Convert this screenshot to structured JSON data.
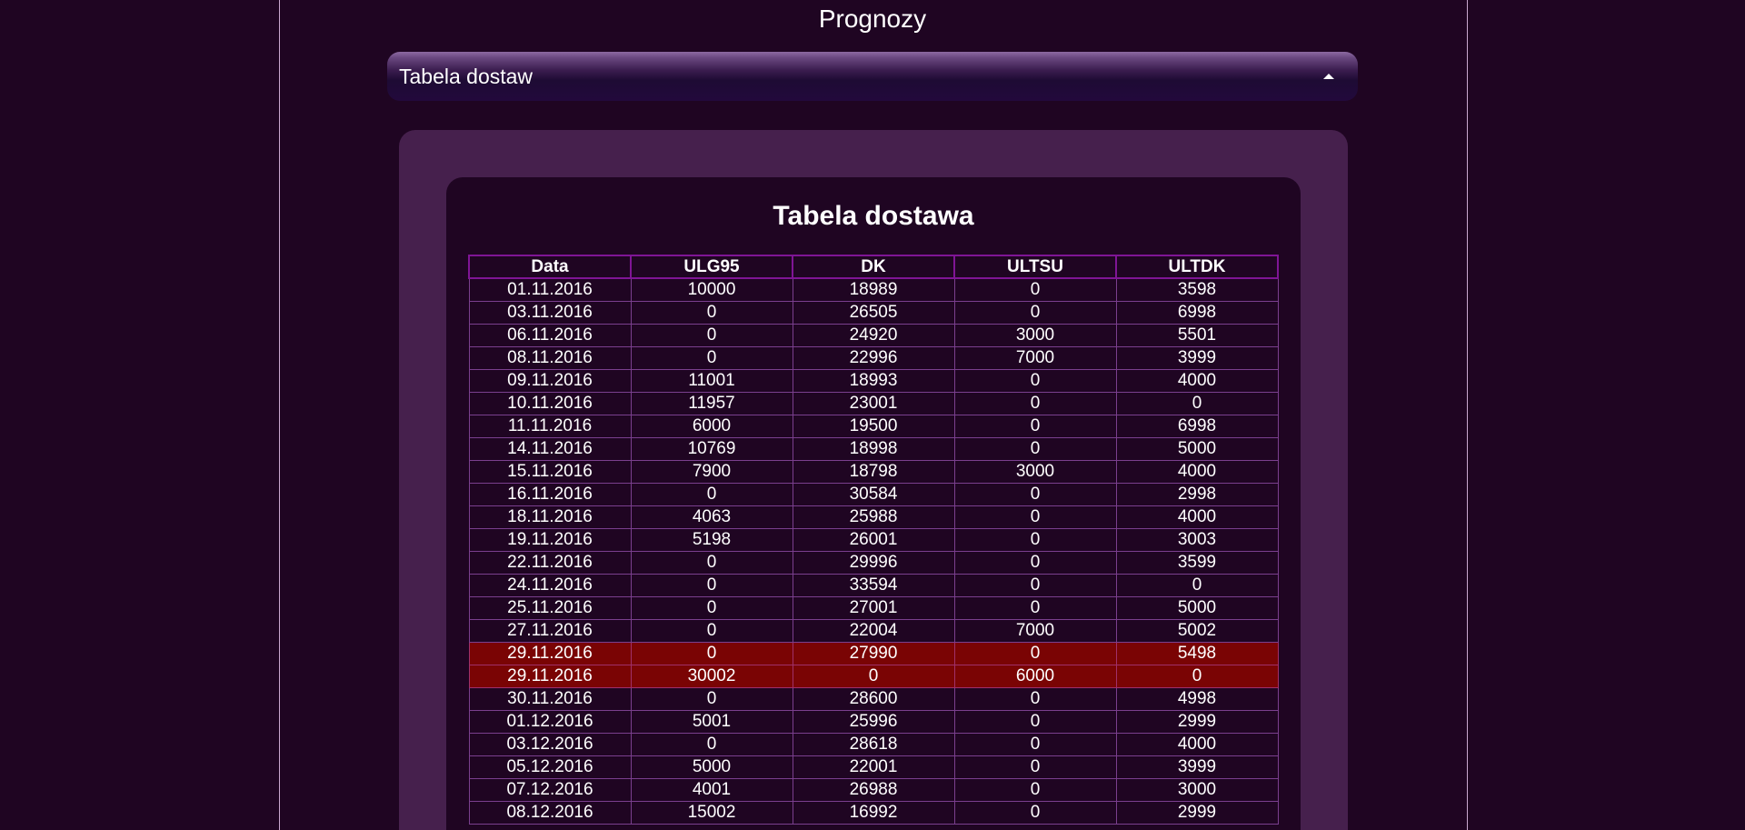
{
  "page": {
    "title": "Prognozy"
  },
  "collapsible": {
    "label": "Tabela dostaw",
    "caret_icon": "caret-up-icon"
  },
  "table": {
    "title": "Tabela dostawa",
    "columns": [
      "Data",
      "ULG95",
      "DK",
      "ULTSU",
      "ULTDK"
    ],
    "highlight_color": "#7a0404",
    "rows": [
      {
        "cells": [
          "01.11.2016",
          "10000",
          "18989",
          "0",
          "3598"
        ],
        "highlight": false
      },
      {
        "cells": [
          "03.11.2016",
          "0",
          "26505",
          "0",
          "6998"
        ],
        "highlight": false
      },
      {
        "cells": [
          "06.11.2016",
          "0",
          "24920",
          "3000",
          "5501"
        ],
        "highlight": false
      },
      {
        "cells": [
          "08.11.2016",
          "0",
          "22996",
          "7000",
          "3999"
        ],
        "highlight": false
      },
      {
        "cells": [
          "09.11.2016",
          "11001",
          "18993",
          "0",
          "4000"
        ],
        "highlight": false
      },
      {
        "cells": [
          "10.11.2016",
          "11957",
          "23001",
          "0",
          "0"
        ],
        "highlight": false
      },
      {
        "cells": [
          "11.11.2016",
          "6000",
          "19500",
          "0",
          "6998"
        ],
        "highlight": false
      },
      {
        "cells": [
          "14.11.2016",
          "10769",
          "18998",
          "0",
          "5000"
        ],
        "highlight": false
      },
      {
        "cells": [
          "15.11.2016",
          "7900",
          "18798",
          "3000",
          "4000"
        ],
        "highlight": false
      },
      {
        "cells": [
          "16.11.2016",
          "0",
          "30584",
          "0",
          "2998"
        ],
        "highlight": false
      },
      {
        "cells": [
          "18.11.2016",
          "4063",
          "25988",
          "0",
          "4000"
        ],
        "highlight": false
      },
      {
        "cells": [
          "19.11.2016",
          "5198",
          "26001",
          "0",
          "3003"
        ],
        "highlight": false
      },
      {
        "cells": [
          "22.11.2016",
          "0",
          "29996",
          "0",
          "3599"
        ],
        "highlight": false
      },
      {
        "cells": [
          "24.11.2016",
          "0",
          "33594",
          "0",
          "0"
        ],
        "highlight": false
      },
      {
        "cells": [
          "25.11.2016",
          "0",
          "27001",
          "0",
          "5000"
        ],
        "highlight": false
      },
      {
        "cells": [
          "27.11.2016",
          "0",
          "22004",
          "7000",
          "5002"
        ],
        "highlight": false
      },
      {
        "cells": [
          "29.11.2016",
          "0",
          "27990",
          "0",
          "5498"
        ],
        "highlight": true
      },
      {
        "cells": [
          "29.11.2016",
          "30002",
          "0",
          "6000",
          "0"
        ],
        "highlight": true
      },
      {
        "cells": [
          "30.11.2016",
          "0",
          "28600",
          "0",
          "4998"
        ],
        "highlight": false
      },
      {
        "cells": [
          "01.12.2016",
          "5001",
          "25996",
          "0",
          "2999"
        ],
        "highlight": false
      },
      {
        "cells": [
          "03.12.2016",
          "0",
          "28618",
          "0",
          "4000"
        ],
        "highlight": false
      },
      {
        "cells": [
          "05.12.2016",
          "5000",
          "22001",
          "0",
          "3999"
        ],
        "highlight": false
      },
      {
        "cells": [
          "07.12.2016",
          "4001",
          "26988",
          "0",
          "3000"
        ],
        "highlight": false
      },
      {
        "cells": [
          "08.12.2016",
          "15002",
          "16992",
          "0",
          "2999"
        ],
        "highlight": false
      }
    ]
  }
}
